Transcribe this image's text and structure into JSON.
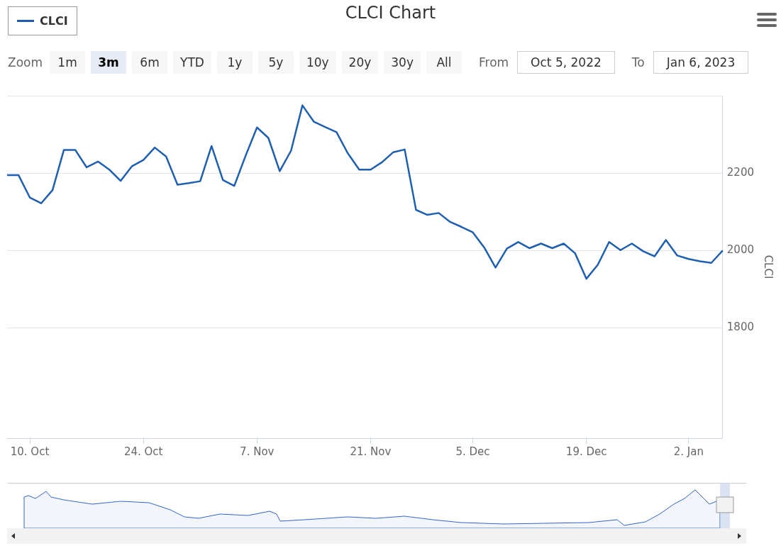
{
  "chart_data": {
    "type": "line",
    "title": "CLCI Chart",
    "ylabel": "CLCI",
    "legend": "top left",
    "grid": "y",
    "marker": "none",
    "line_style": "solid",
    "categories": [
      null,
      null,
      "10. Oct",
      null,
      null,
      null,
      null,
      null,
      null,
      null,
      null,
      null,
      "24. Oct",
      null,
      null,
      null,
      null,
      null,
      null,
      null,
      null,
      null,
      "7. Nov",
      null,
      null,
      null,
      null,
      null,
      null,
      null,
      null,
      null,
      "21. Nov",
      null,
      null,
      null,
      null,
      null,
      null,
      null,
      null,
      "5. Dec",
      null,
      null,
      null,
      null,
      null,
      null,
      null,
      null,
      null,
      "19. Dec",
      null,
      null,
      null,
      null,
      null,
      null,
      null,
      null,
      "2. Jan",
      null,
      null,
      null
    ],
    "series": [
      {
        "name": "CLCI",
        "color": "#1f5fb0",
        "values": [
          2195,
          2195,
          2137,
          2122,
          2156,
          2260,
          2260,
          2215,
          2230,
          2209,
          2180,
          2218,
          2234,
          2266,
          2243,
          2170,
          2174,
          2179,
          2270,
          2182,
          2167,
          2245,
          2318,
          2291,
          2205,
          2258,
          2375,
          2333,
          2319,
          2306,
          2251,
          2209,
          2209,
          2228,
          2254,
          2261,
          2105,
          2092,
          2097,
          2074,
          2061,
          2047,
          2008,
          1956,
          2005,
          2022,
          2006,
          2018,
          2006,
          2018,
          1993,
          1927,
          1963,
          2022,
          2001,
          2018,
          1998,
          1985,
          2027,
          1987,
          1978,
          1972,
          1968,
          2000
        ]
      }
    ],
    "ylim": [
      1515,
      2400
    ],
    "yticks": [
      1800,
      2000,
      2200,
      {
        "value": 2400,
        "label": null
      }
    ],
    "annotations": [
      "Zoom",
      "1m",
      "3m",
      "6m",
      "YTD",
      "1y",
      "5y",
      "10y",
      "20y",
      "30y",
      "All",
      "From",
      "Oct 5, 2022",
      "To",
      "Jan 6, 2023"
    ]
  }
}
